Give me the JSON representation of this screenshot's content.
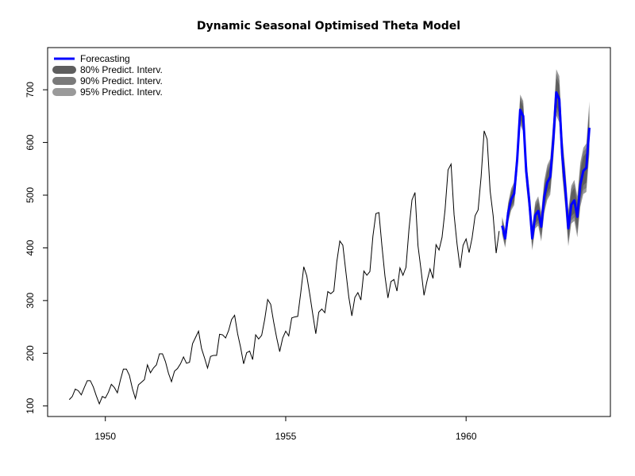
{
  "chart_data": {
    "type": "line",
    "title": "Dynamic Seasonal Optimised Theta Model",
    "xlabel": "",
    "ylabel": "",
    "xlim": [
      1948.4,
      1964.0
    ],
    "ylim": [
      80,
      780
    ],
    "x_ticks": [
      1950,
      1955,
      1960
    ],
    "y_ticks": [
      100,
      200,
      300,
      400,
      500,
      600,
      700
    ],
    "legend": {
      "position": "top-left",
      "entries": [
        "Forecasting",
        "80% Predict. Interv.",
        "90% Predict. Interv.",
        "95% Predict. Interv."
      ]
    },
    "colors": {
      "history": "#000000",
      "forecast": "#0000ff",
      "pi80": "#5e5e5e",
      "pi90": "#7a7a7a",
      "pi95": "#9a9a9a"
    },
    "history": {
      "start_year": 1949,
      "frequency": 12,
      "values": [
        112,
        118,
        132,
        129,
        121,
        135,
        148,
        148,
        136,
        119,
        104,
        118,
        115,
        126,
        141,
        135,
        125,
        149,
        170,
        170,
        158,
        133,
        114,
        140,
        145,
        150,
        178,
        163,
        172,
        178,
        199,
        199,
        184,
        162,
        146,
        166,
        171,
        180,
        193,
        181,
        183,
        218,
        230,
        242,
        209,
        191,
        172,
        194,
        196,
        196,
        236,
        235,
        229,
        243,
        264,
        272,
        237,
        211,
        180,
        201,
        204,
        188,
        235,
        227,
        234,
        264,
        302,
        293,
        259,
        229,
        203,
        229,
        242,
        233,
        267,
        269,
        270,
        315,
        364,
        347,
        312,
        274,
        237,
        278,
        284,
        277,
        317,
        313,
        318,
        374,
        413,
        405,
        355,
        306,
        271,
        306,
        315,
        301,
        356,
        348,
        355,
        422,
        465,
        467,
        404,
        347,
        305,
        336,
        340,
        318,
        362,
        348,
        363,
        435,
        491,
        505,
        404,
        359,
        310,
        337,
        360,
        342,
        406,
        396,
        420,
        472,
        548,
        559,
        463,
        407,
        362,
        405,
        417,
        391,
        419,
        461,
        472,
        535,
        622,
        606,
        508,
        461,
        390,
        432
      ]
    },
    "forecast": {
      "start_year": 1961,
      "frequency": 12,
      "values": [
        442,
        418,
        467,
        492,
        503,
        568,
        662,
        650,
        545,
        490,
        418,
        462,
        470,
        440,
        497,
        524,
        535,
        604,
        695,
        682,
        574,
        513,
        437,
        482,
        490,
        459,
        520,
        546,
        552,
        628
      ],
      "pi80_halfwidth": [
        10,
        11,
        12,
        13,
        14,
        15,
        18,
        18,
        16,
        15,
        14,
        15,
        17,
        17,
        19,
        20,
        21,
        23,
        27,
        27,
        24,
        23,
        21,
        22,
        24,
        24,
        26,
        27,
        28,
        31
      ],
      "pi90_halfwidth": [
        14,
        15,
        16,
        17,
        18,
        20,
        24,
        24,
        22,
        20,
        19,
        20,
        23,
        23,
        25,
        27,
        28,
        31,
        36,
        36,
        32,
        30,
        28,
        30,
        32,
        32,
        35,
        36,
        38,
        42
      ],
      "pi95_halfwidth": [
        17,
        18,
        19,
        21,
        22,
        24,
        29,
        29,
        26,
        24,
        23,
        25,
        28,
        28,
        31,
        33,
        34,
        37,
        44,
        44,
        39,
        37,
        34,
        36,
        39,
        39,
        42,
        44,
        46,
        50
      ]
    }
  }
}
